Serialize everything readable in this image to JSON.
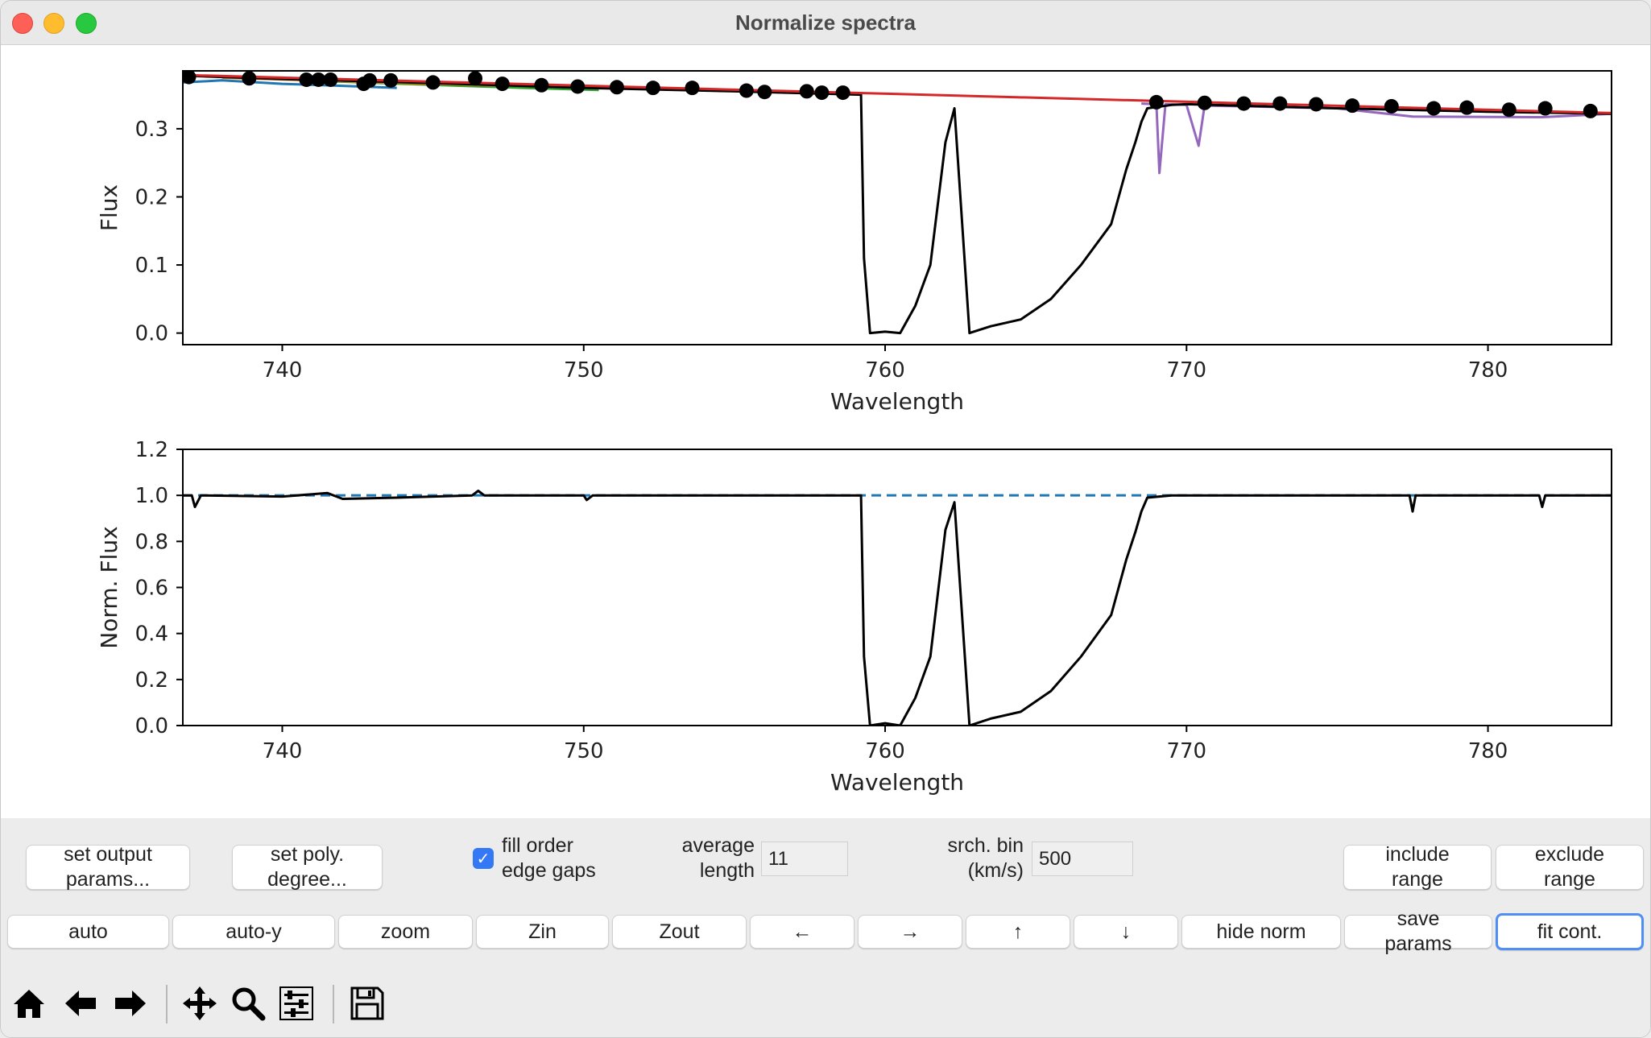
{
  "window": {
    "title": "Normalize spectra"
  },
  "chart_data": [
    {
      "type": "line",
      "title": "",
      "xlabel": "Wavelength",
      "ylabel": "Flux",
      "xlim": [
        736.7,
        784.1
      ],
      "ylim": [
        -0.017,
        0.385
      ],
      "xticks": [
        "740",
        "750",
        "760",
        "770",
        "780"
      ],
      "yticks": [
        "0.0",
        "0.1",
        "0.2",
        "0.3"
      ],
      "grid": false,
      "continuum_fit": {
        "color": "#d62728",
        "x": [
          736.7,
          784.1
        ],
        "y": [
          0.379,
          0.323
        ]
      },
      "series": [
        {
          "color": "#1f77b4",
          "x": [
            736.7,
            738,
            740,
            742,
            743.8
          ],
          "y": [
            0.368,
            0.371,
            0.366,
            0.363,
            0.36
          ]
        },
        {
          "color": "#2ca02c",
          "x": [
            741.5,
            744,
            746,
            748,
            750.5
          ],
          "y": [
            0.37,
            0.366,
            0.363,
            0.36,
            0.357
          ]
        },
        {
          "color": "#ff7f0e",
          "x": [
            738,
            745,
            752,
            758.7
          ],
          "y": [
            0.375,
            0.366,
            0.359,
            0.351
          ]
        },
        {
          "color": "#9467bd",
          "x": [
            768.5,
            769,
            769.1,
            769.3,
            770,
            770.4,
            770.6,
            775,
            777.5,
            781.8,
            784.1
          ],
          "y": [
            0.337,
            0.336,
            0.235,
            0.336,
            0.335,
            0.275,
            0.334,
            0.33,
            0.318,
            0.317,
            0.322
          ]
        },
        {
          "color": "#000000",
          "x": [
            736.7,
            740,
            745,
            750,
            755,
            759.2,
            759.3,
            759.5,
            760,
            760.5,
            761,
            761.5,
            762,
            762.3,
            762.8,
            763.5,
            764.5,
            765.5,
            766.5,
            767.5,
            768,
            768.3,
            768.5,
            768.7,
            769.5,
            770,
            775,
            780,
            784.1
          ],
          "y": [
            0.378,
            0.373,
            0.367,
            0.36,
            0.355,
            0.35,
            0.11,
            0.0,
            0.002,
            0.0,
            0.04,
            0.1,
            0.28,
            0.33,
            0.0,
            0.01,
            0.02,
            0.05,
            0.1,
            0.16,
            0.24,
            0.28,
            0.31,
            0.33,
            0.335,
            0.336,
            0.33,
            0.325,
            0.322
          ]
        }
      ],
      "continuum_points": {
        "color": "#000000",
        "x": [
          736.9,
          738.9,
          740.8,
          741.2,
          741.6,
          742.7,
          742.9,
          743.6,
          745.0,
          746.4,
          747.3,
          748.6,
          749.8,
          751.1,
          752.3,
          753.6,
          755.4,
          756.0,
          757.4,
          757.9,
          758.6,
          769.0,
          770.6,
          771.9,
          773.1,
          774.3,
          775.5,
          776.8,
          778.2,
          779.3,
          780.7,
          781.9,
          783.4
        ],
        "y": [
          0.376,
          0.374,
          0.372,
          0.372,
          0.372,
          0.366,
          0.371,
          0.371,
          0.368,
          0.374,
          0.366,
          0.364,
          0.362,
          0.361,
          0.36,
          0.36,
          0.356,
          0.354,
          0.355,
          0.353,
          0.353,
          0.339,
          0.338,
          0.337,
          0.337,
          0.336,
          0.334,
          0.333,
          0.33,
          0.331,
          0.328,
          0.33,
          0.326
        ]
      }
    },
    {
      "type": "line",
      "title": "",
      "xlabel": "Wavelength",
      "ylabel": "Norm. Flux",
      "xlim": [
        736.7,
        784.1
      ],
      "ylim": [
        0.0,
        1.2
      ],
      "xticks": [
        "740",
        "750",
        "760",
        "770",
        "780"
      ],
      "yticks": [
        "0.0",
        "0.2",
        "0.4",
        "0.6",
        "0.8",
        "1.0",
        "1.2"
      ],
      "grid": false,
      "reference_line": {
        "y": 1.0,
        "style": "dashed",
        "color": "#1f77b4"
      },
      "series": [
        {
          "color": "#000000",
          "x": [
            736.7,
            737,
            737.1,
            737.3,
            740,
            741.5,
            742,
            743.8,
            746.3,
            746.5,
            746.7,
            750,
            750.1,
            750.3,
            759.2,
            759.3,
            759.5,
            760,
            760.5,
            761,
            761.5,
            762,
            762.3,
            762.8,
            763.5,
            764.5,
            765.5,
            766.5,
            767.5,
            768,
            768.3,
            768.5,
            768.7,
            769.5,
            770,
            775,
            777.4,
            777.5,
            777.6,
            781.7,
            781.8,
            781.9,
            784.1
          ],
          "y": [
            1.0,
            1.0,
            0.95,
            1.0,
            0.995,
            1.01,
            0.985,
            0.99,
            1.0,
            1.02,
            1.0,
            1.0,
            0.98,
            1.0,
            1.0,
            0.3,
            0.0,
            0.01,
            0.0,
            0.12,
            0.3,
            0.85,
            0.97,
            0.0,
            0.03,
            0.06,
            0.15,
            0.3,
            0.48,
            0.72,
            0.84,
            0.93,
            0.99,
            1.0,
            1.0,
            1.0,
            1.0,
            0.93,
            1.0,
            1.0,
            0.95,
            1.0,
            1.0
          ]
        }
      ]
    }
  ],
  "controls": {
    "set_output_params": "set output\nparams...",
    "set_poly_degree": "set poly.\ndegree...",
    "fill_order_edge_gaps": {
      "label": "fill order\nedge gaps",
      "checked": true
    },
    "average_length": {
      "label": "average\nlength",
      "value": "11"
    },
    "srch_bin": {
      "label": "srch. bin\n(km/s)",
      "value": "500"
    },
    "include_range": "include\nrange",
    "exclude_range": "exclude\nrange",
    "auto": "auto",
    "auto_y": "auto-y",
    "zoom": "zoom",
    "zin": "Zin",
    "zout": "Zout",
    "left": "←",
    "right": "→",
    "up": "↑",
    "down": "↓",
    "hide_norm": "hide norm",
    "save_params": "save\nparams",
    "fit_cont": "fit cont."
  },
  "toolbar": {
    "icons": [
      "home-icon",
      "back-arrow-icon",
      "forward-arrow-icon",
      "pan-icon",
      "zoom-icon",
      "configure-subplots-icon",
      "save-icon"
    ]
  }
}
